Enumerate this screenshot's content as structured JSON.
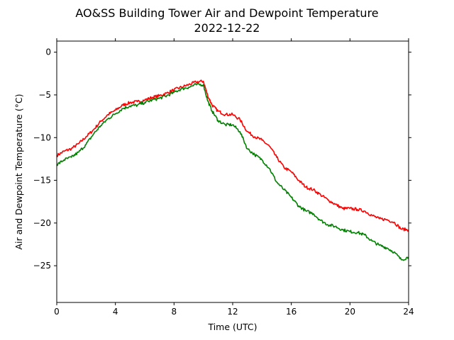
{
  "chart_data": {
    "type": "line",
    "title": "AO&SS Building Tower Air and Dewpoint Temperature",
    "subtitle": "2022-12-22",
    "xlabel": "Time (UTC)",
    "ylabel": "Air and Dewpoint Temperature (°C)",
    "xlim": [
      0,
      24
    ],
    "ylim": [
      -29.3,
      1.3
    ],
    "xticks": [
      0,
      4,
      8,
      12,
      16,
      20,
      24
    ],
    "yticks": [
      0,
      -5,
      -10,
      -15,
      -20,
      -25
    ],
    "grid": false,
    "legend": "none",
    "series": [
      {
        "color": "#ff0000",
        "x": [
          0,
          0.5,
          1,
          1.5,
          2,
          2.5,
          3,
          3.5,
          4,
          4.5,
          5,
          5.5,
          6,
          6.5,
          7,
          7.5,
          8,
          8.5,
          9,
          9.5,
          10,
          10.3,
          10.6,
          11,
          11.5,
          12,
          12.5,
          13,
          13.5,
          14,
          14.5,
          15,
          15.5,
          16,
          16.5,
          17,
          17.5,
          18,
          18.5,
          19,
          19.5,
          20,
          20.5,
          21,
          21.5,
          22,
          22.5,
          23,
          23.5,
          24
        ],
        "y": [
          -12.1,
          -11.6,
          -11.3,
          -10.7,
          -9.9,
          -9.1,
          -8.1,
          -7.3,
          -6.8,
          -6.2,
          -5.9,
          -5.8,
          -5.6,
          -5.3,
          -5.1,
          -4.8,
          -4.4,
          -4.1,
          -3.8,
          -3.5,
          -3.4,
          -5.1,
          -6.2,
          -6.9,
          -7.3,
          -7.3,
          -7.9,
          -9.3,
          -9.9,
          -10.3,
          -11.0,
          -12.3,
          -13.5,
          -14.0,
          -15.0,
          -15.8,
          -16.1,
          -16.7,
          -17.3,
          -17.8,
          -18.3,
          -18.3,
          -18.4,
          -18.6,
          -19.1,
          -19.5,
          -19.6,
          -19.9,
          -20.7,
          -20.8
        ]
      },
      {
        "color": "#008000",
        "x": [
          0,
          0.5,
          1,
          1.5,
          2,
          2.5,
          3,
          3.5,
          4,
          4.5,
          5,
          5.5,
          6,
          6.5,
          7,
          7.5,
          8,
          8.5,
          9,
          9.5,
          10,
          10.3,
          10.6,
          11,
          11.5,
          12,
          12.5,
          13,
          13.5,
          14,
          14.5,
          15,
          15.5,
          16,
          16.5,
          17,
          17.5,
          18,
          18.5,
          19,
          19.5,
          20,
          20.5,
          21,
          21.5,
          22,
          22.5,
          23,
          23.5,
          24
        ],
        "y": [
          -13.2,
          -12.6,
          -12.3,
          -11.7,
          -10.8,
          -9.6,
          -8.6,
          -7.8,
          -7.2,
          -6.6,
          -6.3,
          -6.2,
          -5.9,
          -5.6,
          -5.4,
          -5.1,
          -4.7,
          -4.3,
          -4.1,
          -3.8,
          -3.8,
          -5.7,
          -6.9,
          -8.0,
          -8.5,
          -8.5,
          -9.3,
          -11.3,
          -12.0,
          -12.6,
          -13.6,
          -15.2,
          -16.1,
          -17.0,
          -18.0,
          -18.6,
          -18.9,
          -19.7,
          -20.2,
          -20.4,
          -20.8,
          -21.0,
          -21.1,
          -21.4,
          -22.1,
          -22.6,
          -22.9,
          -23.4,
          -24.3,
          -24.0
        ]
      }
    ]
  }
}
